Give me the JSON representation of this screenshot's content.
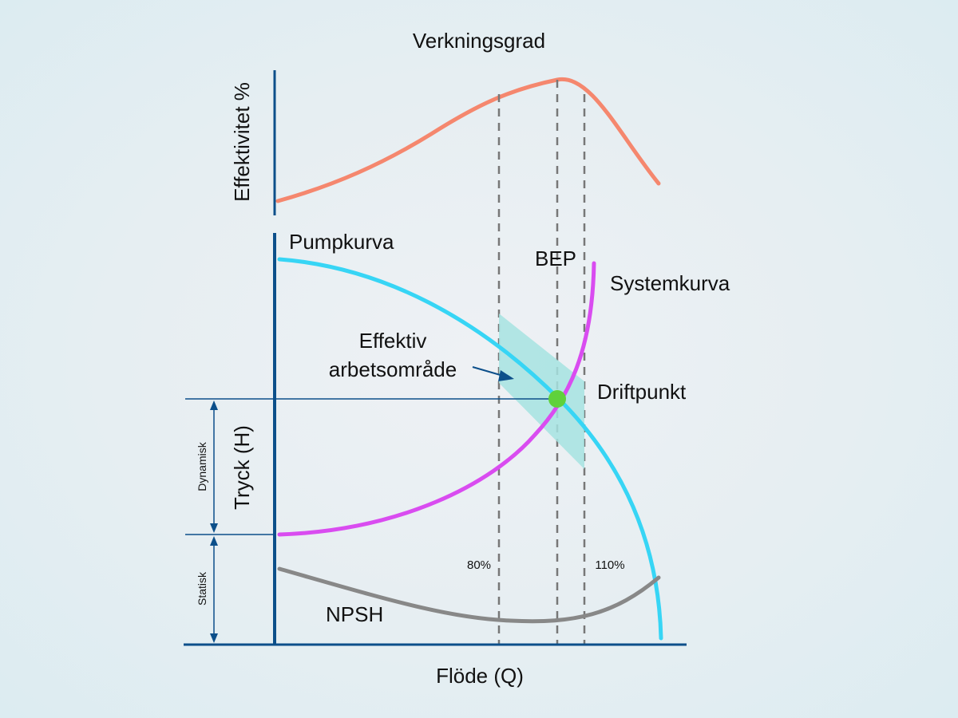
{
  "colors": {
    "axis": "#0c4f8a",
    "efficiency_curve": "#f5876e",
    "pump_curve": "#37d5f5",
    "system_curve": "#d94cf0",
    "npsh_curve": "#888888",
    "operating_region": "#a6e3e1",
    "operating_point": "#5fd13b",
    "guide_line": "#777777"
  },
  "labels": {
    "efficiency_title": "Verkningsgrad",
    "efficiency_axis": "Effektivitet %",
    "pump_curve": "Pumpkurva",
    "bep": "BEP",
    "system_curve": "Systemkurva",
    "operating_region_line1": "Effektiv",
    "operating_region_line2": "arbetsområde",
    "operating_point": "Driftpunkt",
    "pressure_axis": "Tryck (H)",
    "dynamic": "Dynamisk",
    "static": "Statisk",
    "pct_80": "80%",
    "pct_110": "110%",
    "npsh": "NPSH",
    "flow_axis": "Flöde (Q)"
  }
}
